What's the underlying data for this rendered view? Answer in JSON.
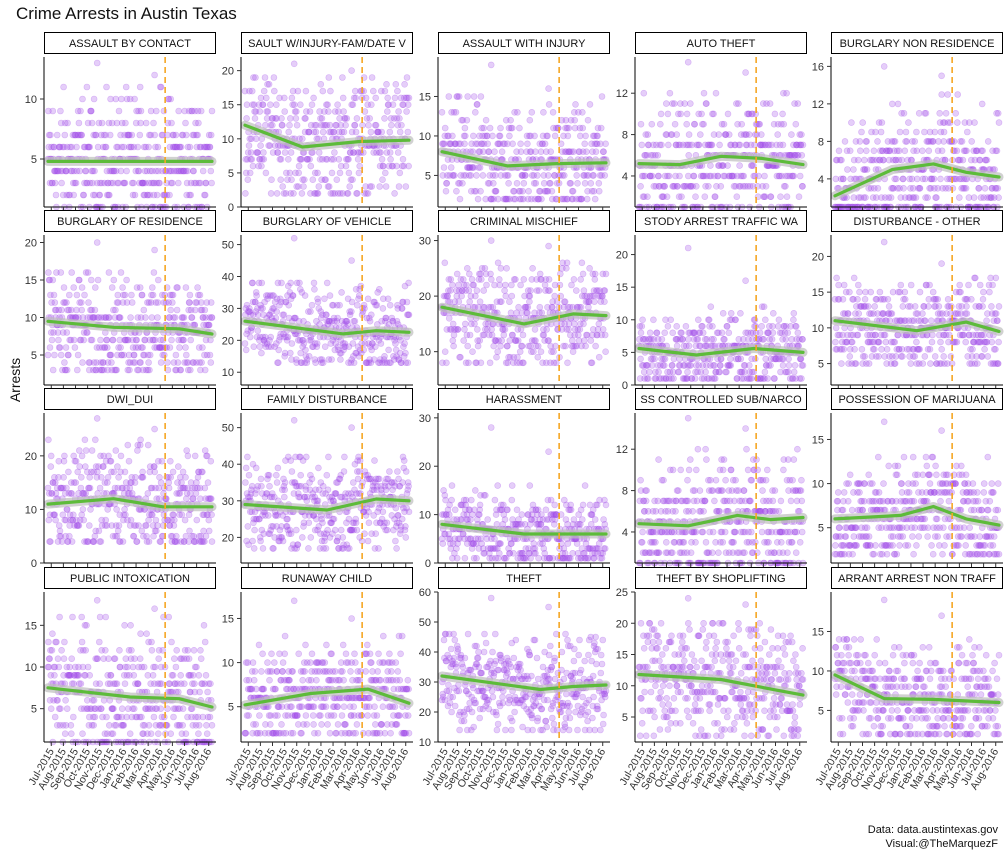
{
  "chart_data": {
    "type": "scatter",
    "title": "Crime Arrests in Austin Texas",
    "ylabel": "Arrests",
    "xlabel": "",
    "caption_lines": [
      "Data: data.austintexas.gov",
      "Visual:@TheMarquezF"
    ],
    "x_ticks": [
      "Jul-2015",
      "Aug-2015",
      "Sep-2015",
      "Oct-2015",
      "Nov-2015",
      "Dec-2015",
      "Jan-2016",
      "Feb-2016",
      "Mar-2016",
      "Apr-2016",
      "May-2016",
      "Jun-2016",
      "Jul-2016",
      "Aug-2016"
    ],
    "x_range": [
      "2015-07-01",
      "2016-08-31"
    ],
    "vline_date": "2016-05-01",
    "grid": false,
    "colors": {
      "points": "#a24ee8",
      "smooth": "#5dbb3a",
      "smooth_band": "#bdbdbd",
      "vline": "#f5a623",
      "strip_bg": "#ffffff"
    },
    "panels": [
      {
        "name": "ASSAULT BY CONTACT",
        "label": "ASSAULT BY CONTACT",
        "ylim": [
          1,
          13.5
        ],
        "yticks": [
          5,
          10
        ],
        "spread": [
          1,
          11
        ],
        "trend": [
          [
            0,
            4.8
          ],
          [
            0.5,
            4.8
          ],
          [
            1,
            4.8
          ]
        ],
        "extremes": [
          13,
          12
        ]
      },
      {
        "name": "ASSAULT W/INJURY-FAM/DATE VIOL",
        "label": "SAULT W/INJURY-FAM/DATE V",
        "ylim": [
          0,
          22
        ],
        "yticks": [
          0,
          5,
          10,
          15,
          20
        ],
        "spread": [
          2,
          19
        ],
        "trend": [
          [
            0,
            12
          ],
          [
            0.35,
            8.8
          ],
          [
            0.7,
            9.6
          ],
          [
            1,
            9.8
          ]
        ],
        "extremes": [
          21,
          20
        ]
      },
      {
        "name": "ASSAULT WITH INJURY",
        "label": "ASSAULT WITH INJURY",
        "ylim": [
          1,
          20
        ],
        "yticks": [
          5,
          10,
          15
        ],
        "spread": [
          2,
          15
        ],
        "trend": [
          [
            0,
            8
          ],
          [
            0.4,
            6.2
          ],
          [
            0.7,
            6.5
          ],
          [
            1,
            6.6
          ]
        ],
        "extremes": [
          19,
          16
        ]
      },
      {
        "name": "AUTO THEFT",
        "label": "AUTO THEFT",
        "ylim": [
          1,
          15.5
        ],
        "yticks": [
          4,
          8,
          12
        ],
        "spread": [
          1,
          12
        ],
        "trend": [
          [
            0,
            5.2
          ],
          [
            0.25,
            5.1
          ],
          [
            0.5,
            5.9
          ],
          [
            0.75,
            5.7
          ],
          [
            1,
            5.1
          ]
        ],
        "extremes": [
          15,
          14
        ]
      },
      {
        "name": "BURGLARY NON RESIDENCE",
        "label": "BURGLARY NON RESIDENCE",
        "ylim": [
          1,
          17
        ],
        "yticks": [
          4,
          8,
          12,
          16
        ],
        "spread": [
          1,
          13
        ],
        "trend": [
          [
            0,
            2.2
          ],
          [
            0.35,
            5
          ],
          [
            0.6,
            5.6
          ],
          [
            0.8,
            4.7
          ],
          [
            1,
            4.2
          ]
        ],
        "extremes": [
          16,
          15
        ]
      },
      {
        "name": "BURGLARY OF RESIDENCE",
        "label": "BURGLARY OF RESIDENCE",
        "ylim": [
          1,
          21
        ],
        "yticks": [
          5,
          10,
          15,
          20
        ],
        "spread": [
          3,
          16
        ],
        "trend": [
          [
            0,
            9.5
          ],
          [
            0.4,
            8.7
          ],
          [
            0.8,
            8.5
          ],
          [
            1,
            7.8
          ]
        ],
        "extremes": [
          20,
          19
        ]
      },
      {
        "name": "BURGLARY OF VEHICLE",
        "label": "BURGLARY OF VEHICLE",
        "ylim": [
          6,
          53
        ],
        "yticks": [
          10,
          20,
          30,
          40,
          50
        ],
        "spread": [
          13,
          38
        ],
        "trend": [
          [
            0,
            26
          ],
          [
            0.6,
            22
          ],
          [
            0.8,
            23
          ],
          [
            1,
            22.5
          ]
        ],
        "extremes": [
          52,
          45
        ]
      },
      {
        "name": "CRIMINAL MISCHIEF",
        "label": "CRIMINAL MISCHIEF",
        "ylim": [
          4,
          31
        ],
        "yticks": [
          10,
          20,
          30
        ],
        "spread": [
          8,
          26
        ],
        "trend": [
          [
            0,
            18
          ],
          [
            0.5,
            15
          ],
          [
            0.8,
            16.8
          ],
          [
            1,
            16.5
          ]
        ],
        "extremes": [
          30,
          29
        ]
      },
      {
        "name": "CUSTODY ARREST TRAFFIC WARR",
        "label": "STODY ARREST TRAFFIC WA",
        "ylim": [
          0,
          23
        ],
        "yticks": [
          0,
          5,
          10,
          15,
          20
        ],
        "spread": [
          1,
          12
        ],
        "trend": [
          [
            0,
            5.6
          ],
          [
            0.35,
            4.6
          ],
          [
            0.7,
            5.6
          ],
          [
            1,
            5
          ]
        ],
        "extremes": [
          21,
          16
        ]
      },
      {
        "name": "DISTURBANCE - OTHER",
        "label": "DISTURBANCE - OTHER",
        "ylim": [
          2,
          23
        ],
        "yticks": [
          5,
          10,
          15,
          20
        ],
        "spread": [
          5,
          17
        ],
        "trend": [
          [
            0,
            11
          ],
          [
            0.5,
            9.6
          ],
          [
            0.8,
            10.8
          ],
          [
            1,
            9.5
          ]
        ],
        "extremes": [
          22,
          19
        ]
      },
      {
        "name": "DWI_DUI",
        "label": "DWI_DUI",
        "ylim": [
          0,
          28
        ],
        "yticks": [
          0,
          10,
          20
        ],
        "spread": [
          4,
          23
        ],
        "trend": [
          [
            0,
            11
          ],
          [
            0.4,
            12
          ],
          [
            0.7,
            10.5
          ],
          [
            1,
            10.5
          ]
        ],
        "extremes": [
          27,
          25
        ]
      },
      {
        "name": "FAMILY DISTURBANCE",
        "label": "FAMILY DISTURBANCE",
        "ylim": [
          13,
          54
        ],
        "yticks": [
          20,
          30,
          40,
          50
        ],
        "spread": [
          17,
          42
        ],
        "trend": [
          [
            0,
            29
          ],
          [
            0.5,
            27.5
          ],
          [
            0.8,
            30.5
          ],
          [
            1,
            30
          ]
        ],
        "extremes": [
          52,
          50
        ]
      },
      {
        "name": "HARASSMENT",
        "label": "HARASSMENT",
        "ylim": [
          0,
          31
        ],
        "yticks": [
          0,
          10,
          20,
          30
        ],
        "spread": [
          1,
          16
        ],
        "trend": [
          [
            0,
            8
          ],
          [
            0.5,
            6
          ],
          [
            0.8,
            6
          ],
          [
            1,
            6
          ]
        ],
        "extremes": [
          28,
          23
        ]
      },
      {
        "name": "POSSESSION CONTROLLED SUB/NARCOTIC",
        "label": "SS CONTROLLED SUB/NARCO",
        "ylim": [
          1,
          15.5
        ],
        "yticks": [
          4,
          8,
          12
        ],
        "spread": [
          1,
          12
        ],
        "trend": [
          [
            0,
            4.8
          ],
          [
            0.3,
            4.6
          ],
          [
            0.6,
            5.6
          ],
          [
            0.8,
            5.2
          ],
          [
            1,
            5.4
          ]
        ],
        "extremes": [
          15,
          14
        ]
      },
      {
        "name": "POSSESSION OF MARIJUANA",
        "label": "POSSESSION OF MARIJUANA",
        "ylim": [
          1,
          18
        ],
        "yticks": [
          5,
          10,
          15
        ],
        "spread": [
          2,
          13
        ],
        "trend": [
          [
            0,
            6
          ],
          [
            0.4,
            6.4
          ],
          [
            0.6,
            7.4
          ],
          [
            0.8,
            6
          ],
          [
            1,
            5.3
          ]
        ],
        "extremes": [
          17,
          16
        ]
      },
      {
        "name": "PUBLIC INTOXICATION",
        "label": "PUBLIC INTOXICATION",
        "ylim": [
          1,
          19
        ],
        "yticks": [
          5,
          10,
          15
        ],
        "spread": [
          1,
          16
        ],
        "trend": [
          [
            0,
            7.5
          ],
          [
            0.5,
            6.4
          ],
          [
            0.8,
            6.2
          ],
          [
            1,
            5.2
          ]
        ],
        "extremes": [
          18,
          17
        ]
      },
      {
        "name": "RUNAWAY CHILD",
        "label": "RUNAWAY CHILD",
        "ylim": [
          1,
          18
        ],
        "yticks": [
          5,
          10,
          15
        ],
        "spread": [
          2,
          13
        ],
        "trend": [
          [
            0,
            5.2
          ],
          [
            0.4,
            6.5
          ],
          [
            0.75,
            7
          ],
          [
            1,
            5.4
          ]
        ],
        "extremes": [
          17,
          15
        ]
      },
      {
        "name": "THEFT",
        "label": "THEFT",
        "ylim": [
          10,
          60
        ],
        "yticks": [
          10,
          20,
          30,
          40,
          50,
          60
        ],
        "spread": [
          14,
          46
        ],
        "trend": [
          [
            0,
            32
          ],
          [
            0.6,
            27.5
          ],
          [
            0.8,
            28.5
          ],
          [
            1,
            29
          ]
        ],
        "extremes": [
          58,
          55
        ]
      },
      {
        "name": "THEFT BY SHOPLIFTING",
        "label": "THEFT BY SHOPLIFTING",
        "ylim": [
          1,
          25
        ],
        "yticks": [
          5,
          10,
          15,
          20,
          25
        ],
        "spread": [
          2,
          20
        ],
        "trend": [
          [
            0,
            11.8
          ],
          [
            0.5,
            11
          ],
          [
            0.8,
            9.5
          ],
          [
            1,
            8.5
          ]
        ],
        "extremes": [
          24,
          23
        ]
      },
      {
        "name": "WARRANT ARREST NON TRAFFIC",
        "label": "ARRANT ARREST NON TRAFF",
        "ylim": [
          1,
          20
        ],
        "yticks": [
          5,
          10,
          15
        ],
        "spread": [
          2,
          14
        ],
        "trend": [
          [
            0,
            9.5
          ],
          [
            0.3,
            6.5
          ],
          [
            0.6,
            6.4
          ],
          [
            1,
            6
          ]
        ],
        "extremes": [
          19,
          17
        ]
      }
    ]
  }
}
